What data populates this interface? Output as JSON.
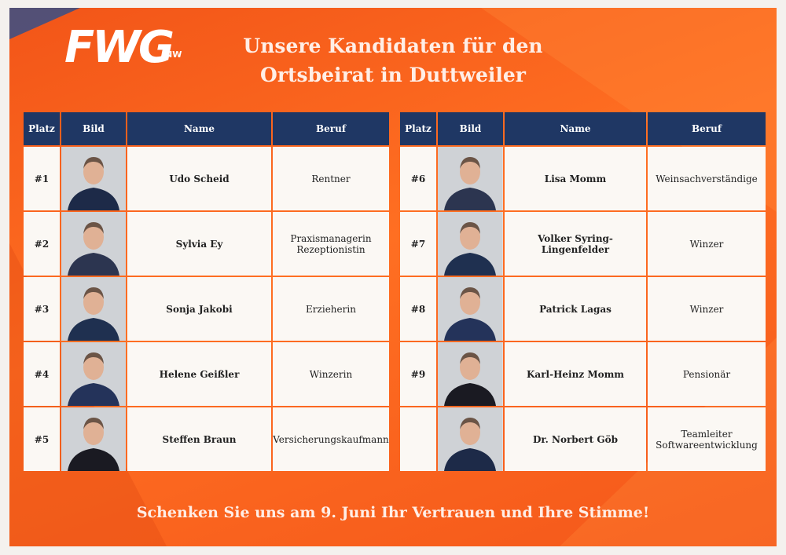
{
  "logo": {
    "text": "FWG",
    "badge": "NW"
  },
  "title": [
    "Unsere Kandidaten für den",
    "Ortsbeirat in Duttweiler"
  ],
  "tables": [
    {
      "header": [
        "Platz",
        "Bild",
        "Name",
        "Beruf"
      ],
      "rows": [
        [
          "#1",
          "Udo Scheid",
          "Rentner"
        ],
        [
          "#2",
          "Sylvia Ey",
          "Praxismanagerin\nRezeptionistin"
        ],
        [
          "#3",
          "Sonja Jakobi",
          "Erzieherin"
        ],
        [
          "#4",
          "Helene Geißler",
          "Winzerin"
        ],
        [
          "#5",
          "Steffen Braun",
          "Versicherungskaufmann"
        ]
      ]
    },
    {
      "header": [
        "Platz",
        "Bild",
        "Name",
        "Beruf"
      ],
      "rows": [
        [
          "#6",
          "Lisa Momm",
          "Weinsachverständige"
        ],
        [
          "#7",
          "Volker Syring-Lingenfelder",
          "Winzer"
        ],
        [
          "#8",
          "Patrick Lagas",
          "Winzer"
        ],
        [
          "#9",
          "Karl-Heinz Momm",
          "Pensionär"
        ],
        [
          null,
          "Dr. Norbert Göb",
          "Teamleiter\nSoftwareentwicklung"
        ]
      ]
    }
  ],
  "footer": "Schenken Sie uns am 9. Juni Ihr Vertrauen und Ihre Stimme!"
}
